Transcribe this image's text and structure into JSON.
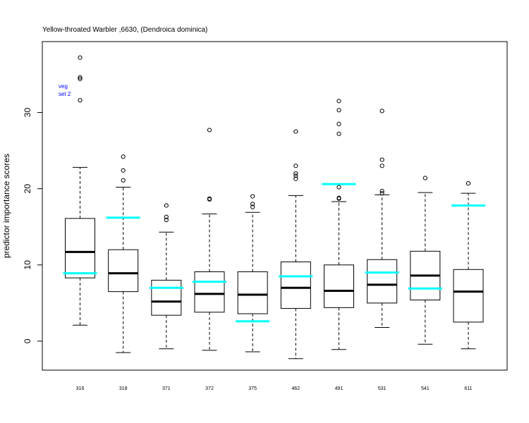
{
  "chart_data": {
    "type": "boxplot",
    "title": "Yellow-throated Warbler ,6630, (Dendroica dominica)",
    "ylabel": "predictor importance scores",
    "xlabel": "",
    "ylim": [
      -3.8,
      39.3
    ],
    "yticks": [
      0,
      10,
      20,
      30
    ],
    "grid": false,
    "legend": {
      "position": "top-left",
      "color": "#0000ff",
      "lines": [
        "veg",
        "set 2"
      ]
    },
    "colors": {
      "box": "#000000",
      "reference": "#00ffff"
    },
    "categories": [
      "316",
      "318",
      "371",
      "372",
      "375",
      "462",
      "491",
      "531",
      "541",
      "611"
    ],
    "boxes": [
      {
        "category": "316",
        "whisker_low": 2.1,
        "q1": 8.3,
        "median": 11.7,
        "q3": 16.1,
        "whisker_high": 22.8,
        "outliers": [
          31.6,
          34.4,
          34.6,
          37.2
        ],
        "reference": 8.9
      },
      {
        "category": "318",
        "whisker_low": -1.5,
        "q1": 6.5,
        "median": 8.9,
        "q3": 12.0,
        "whisker_high": 20.2,
        "outliers": [
          21.1,
          22.4,
          24.2
        ],
        "reference": 16.2
      },
      {
        "category": "371",
        "whisker_low": -1.0,
        "q1": 3.4,
        "median": 5.2,
        "q3": 8.0,
        "whisker_high": 14.3,
        "outliers": [
          15.9,
          16.3,
          17.8
        ],
        "reference": 7.0
      },
      {
        "category": "372",
        "whisker_low": -1.2,
        "q1": 3.8,
        "median": 6.2,
        "q3": 9.1,
        "whisker_high": 16.7,
        "outliers": [
          18.6,
          18.7,
          27.7
        ],
        "reference": 7.8
      },
      {
        "category": "375",
        "whisker_low": -1.4,
        "q1": 3.6,
        "median": 6.1,
        "q3": 9.1,
        "whisker_high": 16.9,
        "outliers": [
          17.6,
          18.0,
          19.0
        ],
        "reference": 2.6
      },
      {
        "category": "462",
        "whisker_low": -2.3,
        "q1": 4.3,
        "median": 7.0,
        "q3": 10.4,
        "whisker_high": 19.1,
        "outliers": [
          21.3,
          21.7,
          22.0,
          23.0,
          27.5
        ],
        "reference": 8.5
      },
      {
        "category": "491",
        "whisker_low": -1.1,
        "q1": 4.4,
        "median": 6.6,
        "q3": 10.0,
        "whisker_high": 18.3,
        "outliers": [
          18.7,
          18.8,
          20.2,
          27.2,
          28.5,
          30.3,
          31.5
        ],
        "reference": 20.6
      },
      {
        "category": "531",
        "whisker_low": 1.8,
        "q1": 5.0,
        "median": 7.4,
        "q3": 10.7,
        "whisker_high": 19.2,
        "outliers": [
          19.4,
          19.7,
          23.0,
          23.8,
          30.2
        ],
        "reference": 9.0
      },
      {
        "category": "541",
        "whisker_low": -0.4,
        "q1": 5.4,
        "median": 8.6,
        "q3": 11.8,
        "whisker_high": 19.5,
        "outliers": [
          21.4
        ],
        "reference": 6.9
      },
      {
        "category": "611",
        "whisker_low": -1.0,
        "q1": 2.5,
        "median": 6.5,
        "q3": 9.4,
        "whisker_high": 19.4,
        "outliers": [
          20.7
        ],
        "reference": 17.8
      }
    ]
  }
}
